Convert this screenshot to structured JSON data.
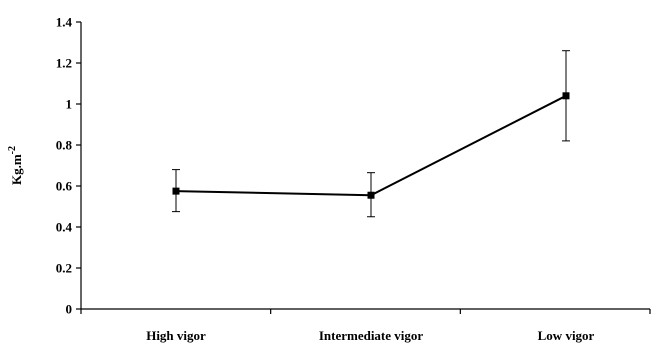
{
  "chart_data": {
    "type": "line",
    "categories": [
      "High vigor",
      "Intermediate vigor",
      "Low vigor"
    ],
    "series": [
      {
        "values": [
          0.575,
          0.555,
          1.04
        ],
        "error_low": [
          0.475,
          0.45,
          0.82
        ],
        "error_high": [
          0.68,
          0.665,
          1.26
        ]
      }
    ],
    "ylabel_base": "Kg.m",
    "ylabel_exponent": "-2",
    "ylim": [
      0,
      1.4
    ],
    "yticks": [
      "0",
      "0.2",
      "0.4",
      "0.6",
      "0.8",
      "1",
      "1.2",
      "1.4"
    ],
    "grid": false,
    "legend": "none",
    "colors": {
      "line": "#000000",
      "marker": "#000000",
      "axis": "#000000"
    }
  }
}
